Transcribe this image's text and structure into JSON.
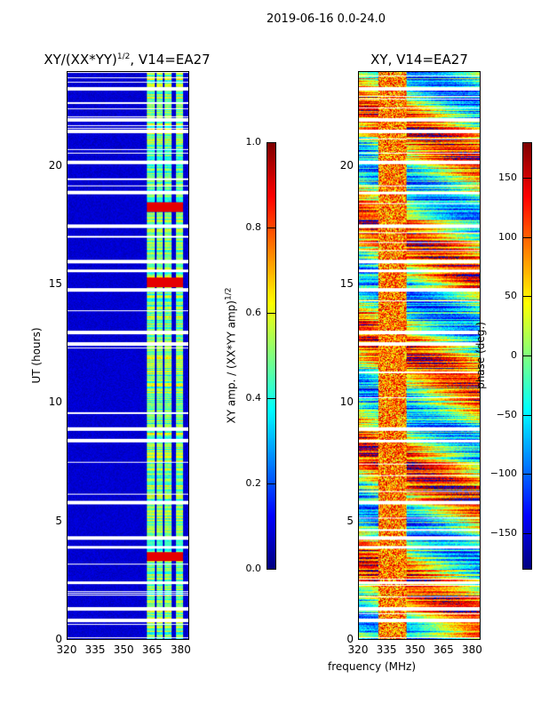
{
  "suptitle": "2019-06-16 0.0-24.0",
  "xlabel": "frequency (MHz)",
  "chart_data": [
    {
      "type": "heatmap",
      "title_main": "XY/(XX*YY)",
      "title_sup": "1/2",
      "title_suffix": ", V14=EA27",
      "ylabel": "UT (hours)",
      "xlim": [
        320,
        384
      ],
      "ylim": [
        0,
        24
      ],
      "xticks": [
        "320",
        "335",
        "350",
        "365",
        "380"
      ],
      "yticks": [
        "0",
        "5",
        "10",
        "15",
        "20"
      ],
      "colormap": "jet",
      "clim": [
        0,
        1
      ],
      "colorbar_label": "XY amp. / (XX*YY amp)",
      "colorbar_label_sup": "1/2",
      "colorbar_ticks": [
        "0.0",
        "0.2",
        "0.4",
        "0.6",
        "0.8",
        "1.0"
      ],
      "bright_channels_mhz": [
        [
          362,
          366
        ],
        [
          367,
          370
        ],
        [
          371,
          375
        ],
        [
          377,
          381
        ]
      ],
      "high_amp_times_ut": [
        3.5,
        15.1,
        18.3
      ],
      "flagged_times_ut": [
        0.8,
        1.3,
        2.4,
        3.9,
        4.3,
        5.8,
        8.4,
        8.9,
        12.5,
        13.0,
        14.8,
        15.6,
        16.0,
        17.5,
        18.9,
        20.2,
        21.5,
        22.0,
        23.3
      ]
    },
    {
      "type": "heatmap",
      "title": "XY, V14=EA27",
      "xlim": [
        320,
        384
      ],
      "ylim": [
        0,
        24
      ],
      "xticks": [
        "320",
        "335",
        "350",
        "365",
        "380"
      ],
      "yticks": [
        "0",
        "5",
        "10",
        "15",
        "20"
      ],
      "colormap": "jet",
      "clim": [
        -180,
        180
      ],
      "colorbar_label": "phase (deg.)",
      "colorbar_ticks": [
        "−150",
        "−100",
        "−50",
        "0",
        "50",
        "100",
        "150"
      ],
      "colorbar_tick_values": [
        -150,
        -100,
        -50,
        0,
        50,
        100,
        150
      ]
    }
  ]
}
